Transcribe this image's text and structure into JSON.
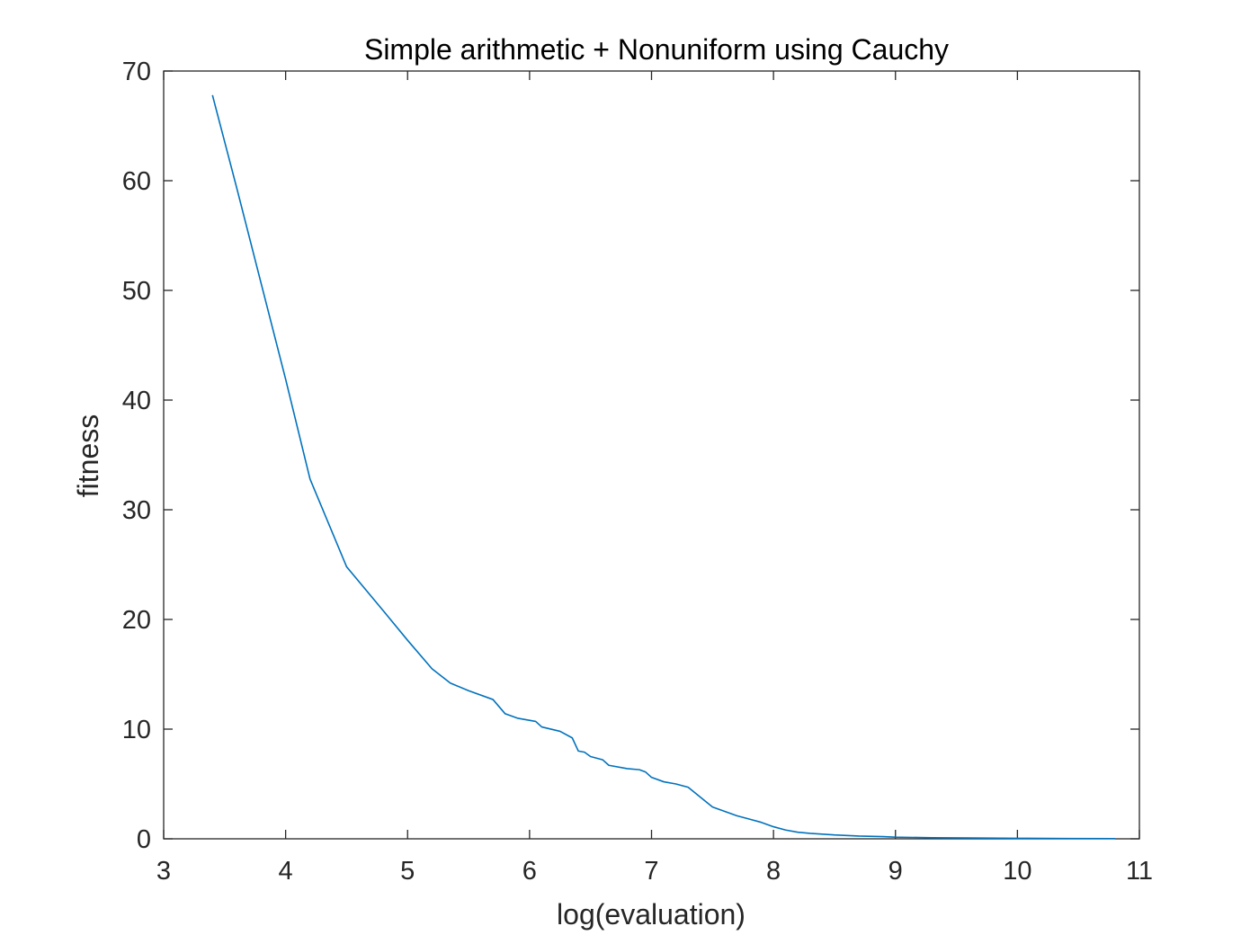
{
  "chart_data": {
    "type": "line",
    "title": "Simple arithmetic + Nonuniform using Cauchy",
    "xlabel": "log(evaluation)",
    "ylabel": "fitness",
    "xlim": [
      3,
      11
    ],
    "ylim": [
      0,
      70
    ],
    "xticks": [
      "3",
      "4",
      "5",
      "6",
      "7",
      "8",
      "9",
      "10",
      "11"
    ],
    "yticks": [
      "0",
      "10",
      "20",
      "30",
      "40",
      "50",
      "60",
      "70"
    ],
    "grid": false,
    "box": true,
    "series": [
      {
        "color": "#0072BD",
        "x": [
          3.4,
          3.6,
          3.8,
          4.0,
          4.2,
          4.5,
          4.8,
          5.0,
          5.2,
          5.35,
          5.5,
          5.7,
          5.8,
          5.9,
          6.05,
          6.1,
          6.25,
          6.35,
          6.4,
          6.45,
          6.5,
          6.6,
          6.65,
          6.8,
          6.9,
          6.95,
          7.0,
          7.1,
          7.2,
          7.3,
          7.4,
          7.5,
          7.6,
          7.7,
          7.8,
          7.9,
          8.0,
          8.1,
          8.2,
          8.3,
          8.5,
          8.7,
          8.9,
          9.0,
          9.3,
          9.6,
          10.0,
          10.4,
          10.8
        ],
        "y": [
          67.8,
          59.3,
          50.6,
          41.9,
          32.8,
          24.8,
          20.8,
          18.1,
          15.5,
          14.2,
          13.5,
          12.7,
          11.4,
          11.0,
          10.7,
          10.2,
          9.8,
          9.2,
          8.0,
          7.9,
          7.5,
          7.2,
          6.7,
          6.4,
          6.3,
          6.1,
          5.6,
          5.2,
          5.0,
          4.7,
          3.8,
          2.9,
          2.5,
          2.1,
          1.8,
          1.5,
          1.1,
          0.8,
          0.6,
          0.5,
          0.35,
          0.25,
          0.2,
          0.15,
          0.1,
          0.08,
          0.05,
          0.03,
          0.02
        ]
      }
    ]
  }
}
